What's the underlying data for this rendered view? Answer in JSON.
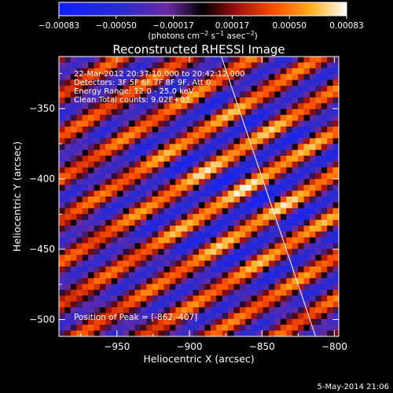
{
  "chart_data": {
    "type": "heatmap",
    "title": "Reconstructed RHESSI Image",
    "xlabel": "Heliocentric X (arcsec)",
    "ylabel": "Heliocentric Y (arcsec)",
    "xlim": [
      -990,
      -797
    ],
    "ylim": [
      -512,
      -313
    ],
    "x_ticks": [
      -950,
      -900,
      -850,
      -800
    ],
    "y_ticks": [
      -350,
      -400,
      -450,
      -500
    ],
    "x_tick_labels": [
      "−950",
      "−900",
      "−850",
      "−800"
    ],
    "y_tick_labels": [
      "−350",
      "−400",
      "−450",
      "−500"
    ],
    "colorbar": {
      "range": [
        -0.00083,
        0.00083
      ],
      "tick_values": [
        -0.00083,
        -0.0005,
        -0.00017,
        0.00017,
        0.0005,
        0.00083
      ],
      "tick_labels": [
        "−0.00083",
        "−0.00050",
        "−0.00017",
        "0.00017",
        "0.00050",
        "0.00083"
      ],
      "unit_label": "(photons cm",
      "unit_sup1": "−2",
      "unit_mid": " s",
      "unit_sup2": "−1",
      "unit_mid2": " asec",
      "unit_sup3": "−2",
      "unit_end": ")"
    },
    "annotations": [
      "22-Mar-2012 20:37:10.000 to 20:42:12.000",
      "Detectors: 3F 5F 6F 7F 8F 9F, Att 0",
      "Energy Range: 12.0 - 25.0 keV",
      "Clean     Total counts: 9.02E+03"
    ],
    "peak_label": "Position of Peak = [-862,-407]",
    "peak": [
      -862,
      -407
    ],
    "pattern": {
      "stripe_direction_deg": 33,
      "stripe_spacing_arcsec": 25,
      "peak_amplitude": 0.00083
    },
    "limb_line": {
      "x": [
        -878,
        -813
      ],
      "y": [
        -313,
        -512
      ]
    },
    "grid": false
  },
  "footer": {
    "timestamp": "5-May-2014 21:06"
  },
  "colors": {
    "background": "#000000",
    "text": "#ffffff"
  }
}
